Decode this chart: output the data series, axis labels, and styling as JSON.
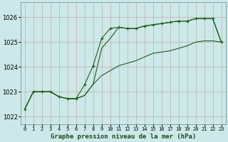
{
  "title": "Graphe pression niveau de la mer (hPa)",
  "bg_color": "#cce8e8",
  "grid_color": "#aacccc",
  "line_color": "#1a5c1a",
  "x_labels": [
    "0",
    "1",
    "2",
    "3",
    "4",
    "5",
    "6",
    "7",
    "8",
    "9",
    "10",
    "11",
    "12",
    "13",
    "14",
    "15",
    "16",
    "17",
    "18",
    "19",
    "20",
    "21",
    "22",
    "23"
  ],
  "ylim": [
    1021.7,
    1026.6
  ],
  "yticks": [
    1022,
    1023,
    1024,
    1025,
    1026
  ],
  "series_main": [
    1022.3,
    1023.0,
    1023.0,
    1023.0,
    1022.8,
    1022.72,
    1022.72,
    1023.28,
    1024.05,
    1025.15,
    1025.55,
    1025.6,
    1025.55,
    1025.55,
    1025.65,
    1025.7,
    1025.75,
    1025.8,
    1025.85,
    1025.85,
    1025.95,
    1025.95,
    1025.95,
    1025.0
  ],
  "series_alt": [
    1022.3,
    1023.0,
    1023.0,
    1023.0,
    1022.8,
    1022.72,
    1022.72,
    1022.85,
    1023.3,
    1024.75,
    1025.15,
    1025.6,
    1025.55,
    1025.55,
    1025.65,
    1025.7,
    1025.75,
    1025.8,
    1025.85,
    1025.85,
    1025.95,
    1025.95,
    1025.95,
    1025.0
  ],
  "series_low": [
    1022.3,
    1023.0,
    1023.0,
    1023.0,
    1022.8,
    1022.72,
    1022.72,
    1022.85,
    1023.3,
    1023.65,
    1023.85,
    1024.05,
    1024.15,
    1024.25,
    1024.4,
    1024.55,
    1024.6,
    1024.65,
    1024.75,
    1024.85,
    1025.0,
    1025.05,
    1025.05,
    1025.0
  ]
}
